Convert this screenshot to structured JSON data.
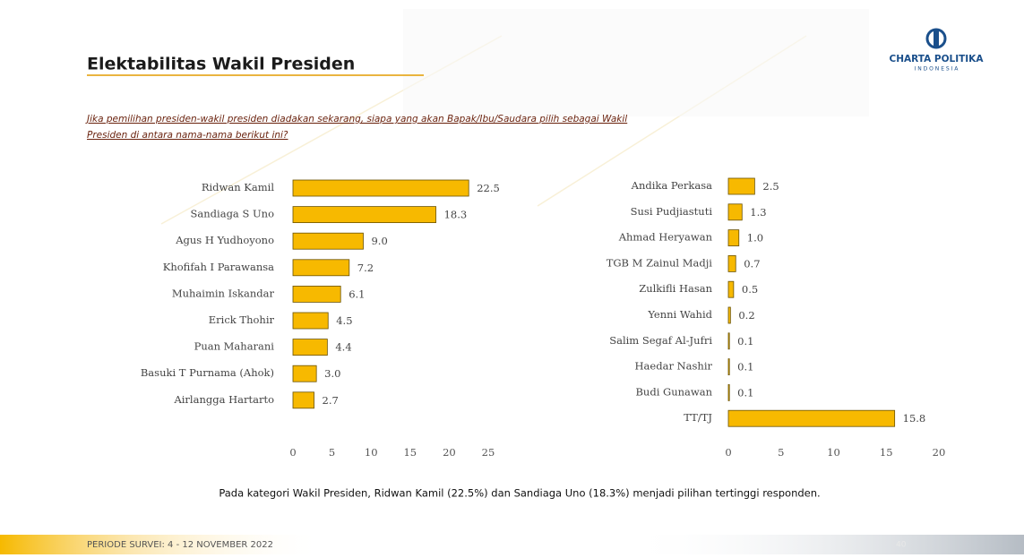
{
  "header": {
    "title": "Elektabilitas Wakil Presiden",
    "question_line1": "Jika pemilihan presiden-wakil presiden diadakan sekarang, siapa yang akan Bapak/Ibu/Saudara pilih sebagai Wakil",
    "question_line2": "Presiden di antara nama-nama berikut ini?",
    "logo": "CHARTA POLITIKA",
    "logo_sub": "I N D O N E S I A"
  },
  "chart_data": [
    {
      "type": "bar",
      "orientation": "horizontal",
      "categories": [
        "Ridwan Kamil",
        "Sandiaga S Uno",
        "Agus H Yudhoyono",
        "Khofifah I Parawansa",
        "Muhaimin Iskandar",
        "Erick Thohir",
        "Puan Maharani",
        "Basuki T Purnama (Ahok)",
        "Airlangga Hartarto"
      ],
      "values": [
        22.5,
        18.3,
        9.0,
        7.2,
        6.1,
        4.5,
        4.4,
        3.0,
        2.7
      ],
      "value_labels": [
        "22.5",
        "18.3",
        "9.0",
        "7.2",
        "6.1",
        "4.5",
        "4.4",
        "3.0",
        "2.7"
      ],
      "color": "#f7b900",
      "xlim": [
        0,
        25
      ],
      "xticks": [
        0,
        5,
        10,
        15,
        20,
        25
      ]
    },
    {
      "type": "bar",
      "orientation": "horizontal",
      "categories": [
        "Andika Perkasa",
        "Susi Pudjiastuti",
        "Ahmad Heryawan",
        "TGB M Zainul Madji",
        "Zulkifli Hasan",
        "Yenni Wahid",
        "Salim Segaf Al-Jufri",
        "Haedar Nashir",
        "Budi Gunawan",
        "TT/TJ"
      ],
      "values": [
        2.5,
        1.3,
        1.0,
        0.7,
        0.5,
        0.2,
        0.1,
        0.1,
        0.1,
        15.8
      ],
      "value_labels": [
        "2.5",
        "1.3",
        "1.0",
        "0.7",
        "0.5",
        "0.2",
        "0.1",
        "0.1",
        "0.1",
        "15.8"
      ],
      "color": "#f7b900",
      "xlim": [
        0,
        20
      ],
      "xticks": [
        0,
        5,
        10,
        15,
        20
      ]
    }
  ],
  "footer": {
    "note": "Pada kategori Wakil Presiden, Ridwan Kamil (22.5%) dan Sandiaga Uno (18.3%) menjadi pilihan tertinggi responden.",
    "period": "PERIODE SURVEI: 4 - 12 NOVEMBER 2022",
    "page": "40"
  }
}
